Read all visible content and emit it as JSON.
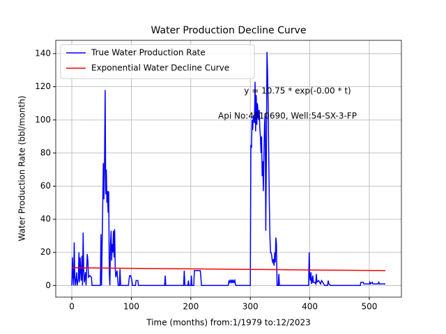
{
  "chart_data": {
    "type": "line",
    "title": "Water Production Decline Curve",
    "xlabel": "Time (months) from:1/1979 to:12/2023",
    "ylabel": "Water Production Rate (bbl/month)",
    "annotations": [
      "y = 10.75 * exp(-0.00 * t)",
      "Api No:4510690, Well:54-SX-3-FP"
    ],
    "xlim": [
      -27,
      554
    ],
    "ylim": [
      -7,
      148
    ],
    "xticks": [
      0,
      100,
      200,
      300,
      400,
      500
    ],
    "yticks": [
      0,
      20,
      40,
      60,
      80,
      100,
      120,
      140
    ],
    "grid": true,
    "legend": "upper left",
    "series": [
      {
        "name": "True Water Production Rate",
        "color": "#0000ff",
        "x": [
          0,
          1,
          2,
          3,
          4,
          5,
          6,
          8,
          9,
          11,
          12,
          13,
          14,
          15,
          16,
          17,
          18,
          19,
          20,
          21,
          23,
          24,
          26,
          27,
          28,
          30,
          33,
          34,
          48,
          49,
          50,
          53,
          54,
          55,
          56,
          57,
          58,
          59,
          60,
          61,
          62,
          63,
          64,
          65,
          66,
          67,
          68,
          69,
          70,
          71,
          72,
          73,
          74,
          76,
          78,
          80,
          81,
          82,
          95,
          97,
          99,
          101,
          102,
          107,
          108,
          111,
          112,
          156,
          157,
          158,
          188,
          189,
          190,
          195,
          196,
          197,
          200,
          201,
          202,
          205,
          206,
          216,
          218,
          263,
          264,
          265,
          266,
          267,
          268,
          269,
          270,
          271,
          272,
          273,
          274,
          275,
          276,
          300,
          301,
          302,
          303,
          304,
          305,
          306,
          307,
          308,
          309,
          310,
          311,
          312,
          313,
          314,
          315,
          316,
          317,
          318,
          319,
          320,
          321,
          322,
          323,
          324,
          325,
          326,
          327,
          328,
          329,
          330,
          331,
          332,
          333,
          334,
          335,
          336,
          337,
          338,
          339,
          340,
          341,
          342,
          343,
          344,
          345,
          347,
          348,
          349,
          398,
          399,
          400,
          401,
          402,
          403,
          404,
          405,
          406,
          408,
          410,
          411,
          412,
          415,
          418,
          420,
          425,
          430,
          431,
          432,
          435,
          485,
          486,
          490,
          491,
          500,
          501,
          502,
          505,
          506,
          515,
          516,
          517,
          527
        ],
        "values": [
          0,
          17,
          5,
          0,
          26,
          5,
          0,
          8,
          0,
          4,
          20,
          2,
          17,
          8,
          3,
          18,
          0,
          32,
          10,
          2,
          8,
          0,
          19,
          15,
          5,
          6,
          5,
          0,
          0,
          31,
          0,
          74,
          52,
          74,
          118,
          55,
          70,
          50,
          57,
          44,
          57,
          8,
          0,
          25,
          33,
          15,
          25,
          20,
          33,
          17,
          34,
          10,
          5,
          9,
          0,
          0,
          10,
          0,
          0,
          6,
          6,
          3,
          0,
          0,
          3,
          3,
          0,
          0,
          6,
          0,
          0,
          9,
          0,
          0,
          3,
          0,
          0,
          6,
          0,
          0,
          9,
          9,
          0,
          0,
          3,
          2,
          3,
          2,
          3,
          2,
          3,
          2,
          3,
          2,
          3,
          1,
          0,
          0,
          85,
          83,
          100,
          94,
          101,
          103,
          98,
          123,
          93,
          115,
          97,
          110,
          105,
          100,
          106,
          95,
          90,
          80,
          90,
          66,
          75,
          57,
          80,
          97,
          104,
          33,
          75,
          141,
          130,
          110,
          80,
          50,
          30,
          20,
          20,
          18,
          15,
          14,
          16,
          12,
          20,
          14,
          29,
          25,
          0,
          0,
          7,
          0,
          0,
          20,
          5,
          3,
          8,
          1,
          2,
          6,
          2,
          2,
          1,
          7,
          2,
          3,
          1,
          3,
          0,
          0,
          3,
          1,
          0,
          0,
          2,
          2,
          1,
          1,
          2,
          1,
          2,
          1,
          1,
          2,
          1,
          1
        ]
      },
      {
        "name": "Exponential Water Decline Curve",
        "color": "#ff0000",
        "x": [
          0,
          100,
          200,
          300,
          400,
          527
        ],
        "values": [
          10.75,
          10.4,
          10.05,
          9.7,
          9.4,
          9.0
        ]
      }
    ]
  }
}
